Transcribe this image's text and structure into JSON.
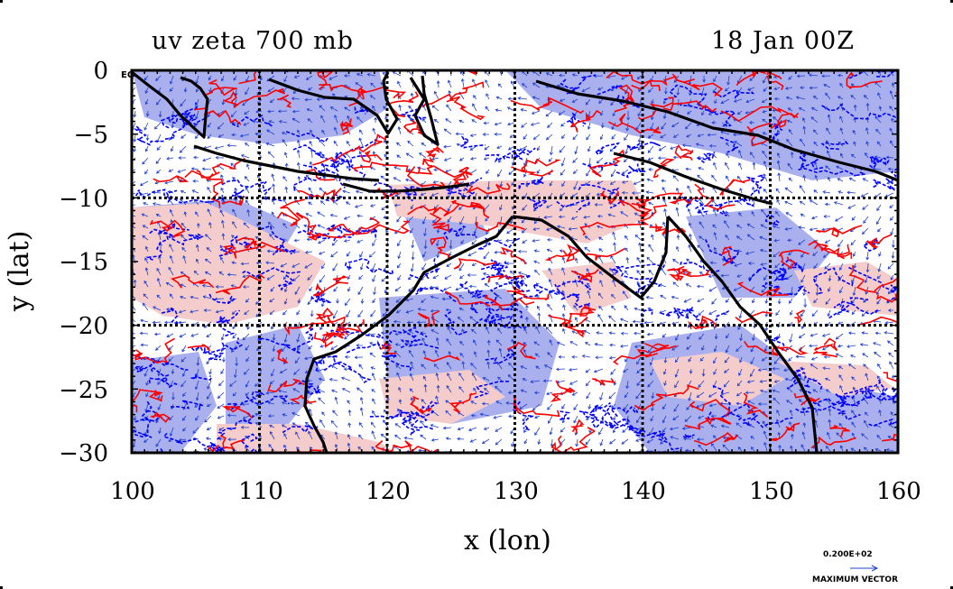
{
  "title": {
    "left": "uv zeta 700 mb",
    "right": "18 Jan 00Z"
  },
  "axes": {
    "xlabel": "x (lon)",
    "ylabel": "y (lat)",
    "x_ticks": [
      "100",
      "110",
      "120",
      "130",
      "140",
      "150",
      "160"
    ],
    "y_ticks": [
      "0",
      "−5",
      "−10",
      "−15",
      "−20",
      "−25",
      "−30"
    ],
    "equator_label": "EQ"
  },
  "vector_key": {
    "value": "0.200E+02",
    "caption": "MAXIMUM VECTOR"
  },
  "map": {
    "lon_range": [
      100,
      160
    ],
    "lat_range": [
      -30,
      0
    ],
    "gridlines_lon": [
      110,
      120,
      130,
      140,
      150
    ],
    "gridlines_lat": [
      -10,
      -20
    ],
    "colors": {
      "positive_fill": "#f4cccc",
      "negative_fill": "#aab0ee",
      "positive_contour": "#ff0000",
      "negative_contour": "#0000ff",
      "coast": "#000000",
      "vectors": "#1f3fd0"
    }
  }
}
